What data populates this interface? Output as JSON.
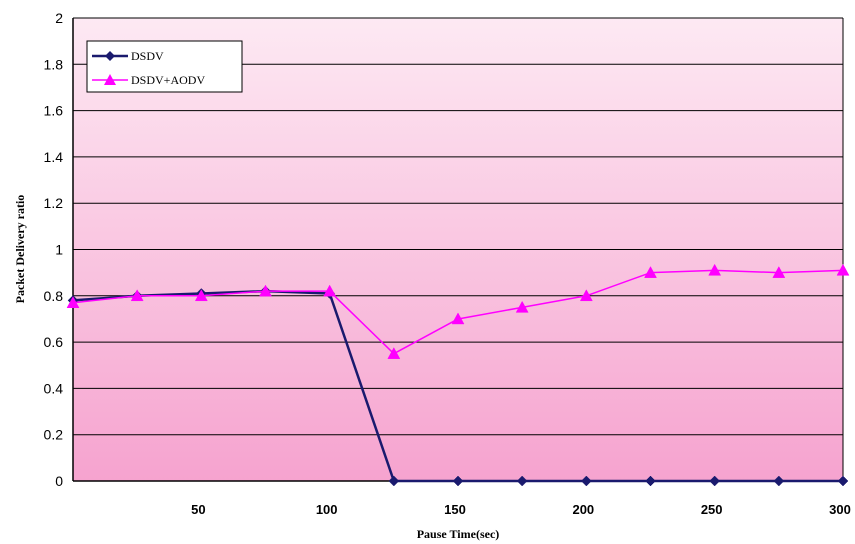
{
  "chart_data": {
    "type": "line",
    "title": "",
    "xlabel": "Pause Time(sec)",
    "ylabel": "Packet Delivery ratio",
    "x": [
      0,
      25,
      50,
      75,
      100,
      125,
      150,
      175,
      200,
      225,
      250,
      275,
      300
    ],
    "xlim": [
      0,
      300
    ],
    "ylim": [
      0,
      2
    ],
    "xticks": [
      50,
      100,
      150,
      200,
      250,
      300
    ],
    "yticks": [
      0,
      0.2,
      0.4,
      0.6,
      0.8,
      1,
      1.2,
      1.4,
      1.6,
      1.8,
      2
    ],
    "grid": true,
    "legend_position": "top-left",
    "background_gradient": [
      "#fde9f3",
      "#f6a3cf"
    ],
    "series": [
      {
        "name": "DSDV",
        "color": "#1a1a6e",
        "marker": "diamond",
        "values": [
          0.78,
          0.8,
          0.81,
          0.82,
          0.81,
          0.0,
          0.0,
          0.0,
          0.0,
          0.0,
          0.0,
          0.0,
          0.0
        ]
      },
      {
        "name": "DSDV+AODV",
        "color": "#ff00ff",
        "marker": "triangle",
        "values": [
          0.77,
          0.8,
          0.8,
          0.82,
          0.82,
          0.55,
          0.7,
          0.75,
          0.8,
          0.9,
          0.91,
          0.9,
          0.91
        ]
      }
    ]
  }
}
